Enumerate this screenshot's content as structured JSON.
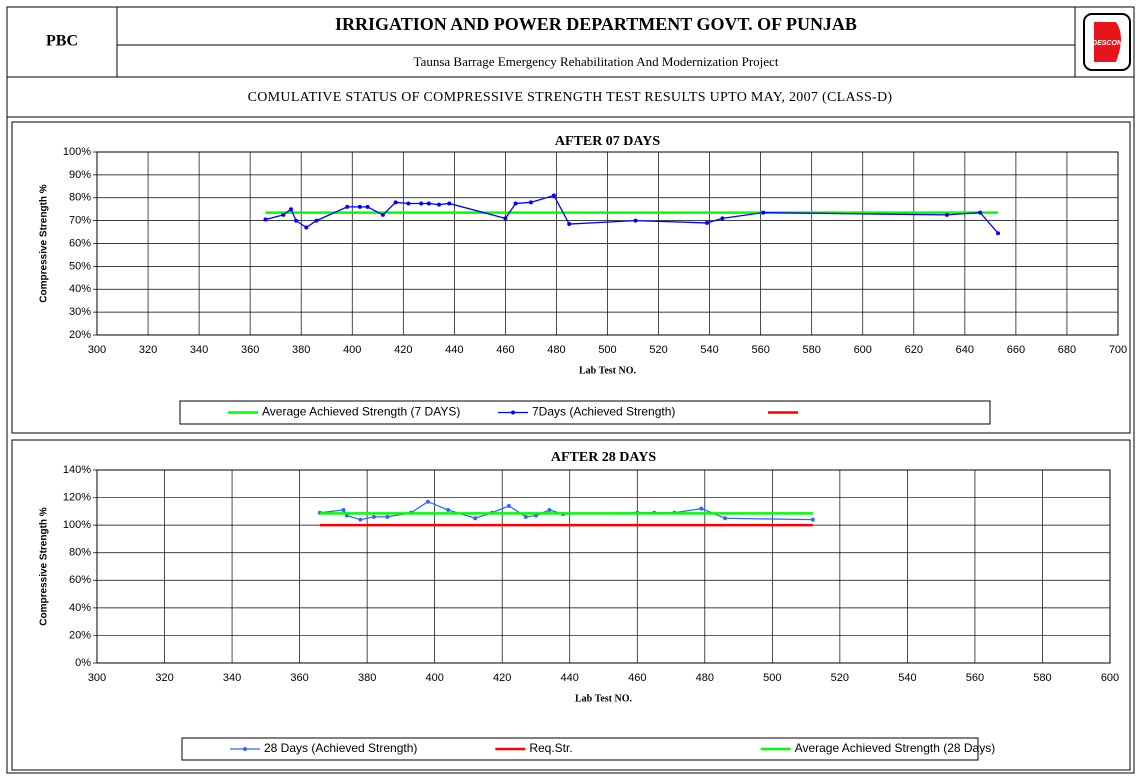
{
  "header": {
    "left": "PBC",
    "title": "IRRIGATION AND POWER DEPARTMENT GOVT. OF PUNJAB",
    "subtitle": "Taunsa Barrage Emergency Rehabilitation And Modernization Project",
    "logo": "DESCON",
    "banner": "COMULATIVE STATUS OF COMPRESSIVE STRENGTH TEST RESULTS UPTO MAY, 2007 (CLASS-D)"
  },
  "chart_data": [
    {
      "type": "line",
      "title": "AFTER 07 DAYS",
      "x_label": "Lab Test NO.",
      "y_label": "Compressive Strength %",
      "xlim": [
        300,
        700
      ],
      "xticks": [
        300,
        320,
        340,
        360,
        380,
        400,
        420,
        440,
        460,
        480,
        500,
        520,
        540,
        560,
        580,
        600,
        620,
        640,
        660,
        680,
        700
      ],
      "ylim": [
        20,
        100
      ],
      "yticks": [
        {
          "value": 20,
          "label": "20%"
        },
        {
          "value": 30,
          "label": "30%"
        },
        {
          "value": 40,
          "label": "40%"
        },
        {
          "value": 50,
          "label": "50%"
        },
        {
          "value": 60,
          "label": "60%"
        },
        {
          "value": 70,
          "label": "70%"
        },
        {
          "value": 80,
          "label": "80%"
        },
        {
          "value": 90,
          "label": "90%"
        },
        {
          "value": 100,
          "label": "100%"
        }
      ],
      "grid": true,
      "series": [
        {
          "name": "Average Achieved Strength (7 DAYS)",
          "color": "#00ff00",
          "x": [
            366,
            653
          ],
          "values": [
            73.5,
            73.5
          ]
        },
        {
          "name": "7Days (Achieved Strength)",
          "color": "#0000ff",
          "marker": true,
          "x": [
            366,
            373,
            376,
            378,
            382,
            386,
            398,
            403,
            406,
            412,
            417,
            422,
            427,
            430,
            434,
            438,
            460,
            464,
            470,
            479,
            485,
            511,
            539,
            545,
            561,
            633,
            646,
            653
          ],
          "values": [
            70.5,
            72.5,
            75,
            70,
            67,
            70,
            76,
            76,
            76,
            72.5,
            78,
            77.5,
            77.5,
            77.5,
            77,
            77.5,
            71,
            77.5,
            78,
            81,
            68.5,
            70,
            69,
            71,
            73.5,
            72.5,
            73.5,
            64.5
          ]
        },
        {
          "color": "#ff0000",
          "x": [],
          "values": []
        }
      ]
    },
    {
      "type": "line",
      "title": "AFTER 28 DAYS",
      "x_label": "Lab Test NO.",
      "y_label": "Compressive Strength %",
      "xlim": [
        300,
        600
      ],
      "xticks": [
        300,
        320,
        340,
        360,
        380,
        400,
        420,
        440,
        460,
        480,
        500,
        520,
        540,
        560,
        580,
        600
      ],
      "ylim": [
        0,
        140
      ],
      "yticks": [
        {
          "value": 0,
          "label": "0%"
        },
        {
          "value": 20,
          "label": "20%"
        },
        {
          "value": 40,
          "label": "40%"
        },
        {
          "value": 60,
          "label": "60%"
        },
        {
          "value": 80,
          "label": "80%"
        },
        {
          "value": 100,
          "label": "100%"
        },
        {
          "value": 120,
          "label": "120%"
        },
        {
          "value": 140,
          "label": "140%"
        }
      ],
      "grid": true,
      "series": [
        {
          "name": "28 Days (Achieved Strength)",
          "color": "#3366ff",
          "marker": true,
          "x": [
            366,
            373,
            374,
            378,
            382,
            386,
            393,
            398,
            404,
            412,
            417,
            422,
            427,
            430,
            434,
            438,
            460,
            465,
            471,
            479,
            486,
            512
          ],
          "values": [
            109,
            111,
            107,
            104,
            106,
            106,
            109,
            117,
            111,
            105,
            109,
            114,
            106,
            107,
            111,
            108,
            109,
            109,
            109,
            112,
            105,
            104
          ]
        },
        {
          "name": "Req.Str.",
          "color": "#ff0000",
          "x": [
            366,
            512
          ],
          "values": [
            100,
            100
          ]
        },
        {
          "name": "Average Achieved Strength (28 Days)",
          "color": "#00ff00",
          "x": [
            366,
            512
          ],
          "values": [
            108.5,
            108.5
          ]
        }
      ]
    }
  ]
}
